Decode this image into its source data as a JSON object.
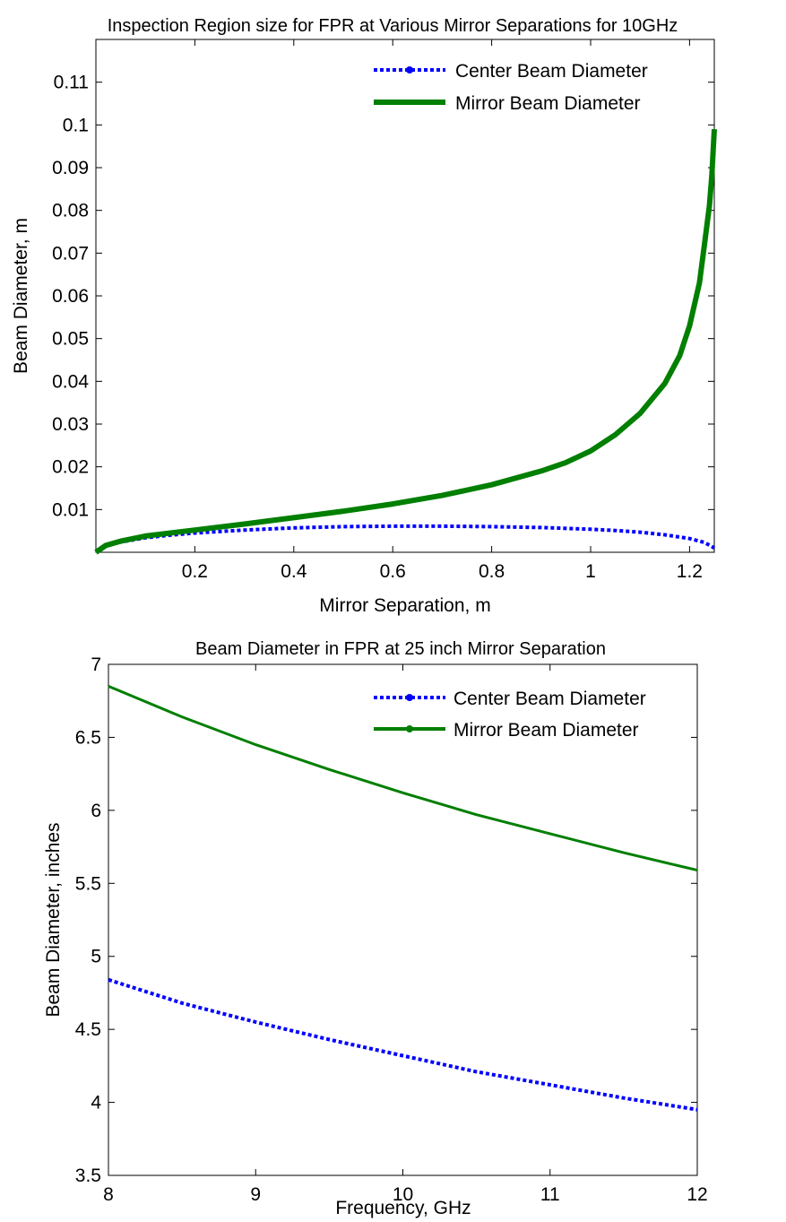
{
  "colors": {
    "center": "#0000ff",
    "mirror": "#007f00",
    "axis": "#000000",
    "background": "#ffffff"
  },
  "chart_data": [
    {
      "type": "line",
      "title": "Inspection Region size for FPR at Various Mirror Separations for 10GHz",
      "xlabel": "Mirror Separation, m",
      "ylabel": "Beam Diameter, m",
      "xlim": [
        0,
        1.25
      ],
      "ylim": [
        0,
        0.12
      ],
      "xticks": [
        {
          "v": 0.2,
          "label": "0.2"
        },
        {
          "v": 0.4,
          "label": "0.4"
        },
        {
          "v": 0.6,
          "label": "0.6"
        },
        {
          "v": 0.8,
          "label": "0.8"
        },
        {
          "v": 1,
          "label": "1"
        },
        {
          "v": 1.2,
          "label": "1.2"
        }
      ],
      "yticks": [
        {
          "v": 0.01,
          "label": "0.01"
        },
        {
          "v": 0.02,
          "label": "0.02"
        },
        {
          "v": 0.03,
          "label": "0.03"
        },
        {
          "v": 0.04,
          "label": "0.04"
        },
        {
          "v": 0.05,
          "label": "0.05"
        },
        {
          "v": 0.06,
          "label": "0.06"
        },
        {
          "v": 0.07,
          "label": "0.07"
        },
        {
          "v": 0.08,
          "label": "0.08"
        },
        {
          "v": 0.09,
          "label": "0.09"
        },
        {
          "v": 0.1,
          "label": "0.1"
        },
        {
          "v": 0.11,
          "label": "0.11"
        }
      ],
      "grid": false,
      "legend_position": "top-right",
      "series": [
        {
          "name": "Center Beam Diameter",
          "style": "dotted",
          "marker": "dot",
          "x": [
            0,
            0.02,
            0.05,
            0.1,
            0.15,
            0.2,
            0.3,
            0.4,
            0.5,
            0.6,
            0.7,
            0.8,
            0.9,
            1.0,
            1.05,
            1.1,
            1.15,
            1.2,
            1.23,
            1.25
          ],
          "y": [
            0,
            0.0016,
            0.0024,
            0.0034,
            0.004,
            0.0045,
            0.0052,
            0.0057,
            0.006,
            0.0061,
            0.0061,
            0.006,
            0.0058,
            0.0054,
            0.0051,
            0.0047,
            0.0041,
            0.0032,
            0.0023,
            0.001
          ]
        },
        {
          "name": "Mirror Beam Diameter",
          "style": "solid",
          "marker": "none",
          "x": [
            0,
            0.02,
            0.05,
            0.1,
            0.2,
            0.3,
            0.4,
            0.5,
            0.6,
            0.7,
            0.8,
            0.9,
            0.95,
            1.0,
            1.05,
            1.1,
            1.15,
            1.18,
            1.2,
            1.22,
            1.23,
            1.24,
            1.245,
            1.25
          ],
          "y": [
            0,
            0.0016,
            0.0026,
            0.0038,
            0.0052,
            0.0066,
            0.0081,
            0.0096,
            0.0113,
            0.0133,
            0.0158,
            0.019,
            0.021,
            0.0237,
            0.0275,
            0.0325,
            0.0395,
            0.046,
            0.053,
            0.063,
            0.072,
            0.081,
            0.088,
            0.099
          ]
        }
      ]
    },
    {
      "type": "line",
      "title": "Beam Diameter in FPR at 25 inch Mirror Separation",
      "xlabel": "Frequency, GHz",
      "ylabel": "Beam Diameter, inches",
      "xlim": [
        8,
        12
      ],
      "ylim": [
        3.5,
        7
      ],
      "xticks": [
        {
          "v": 8,
          "label": "8"
        },
        {
          "v": 9,
          "label": "9"
        },
        {
          "v": 10,
          "label": "10"
        },
        {
          "v": 11,
          "label": "11"
        },
        {
          "v": 12,
          "label": "12"
        }
      ],
      "yticks": [
        {
          "v": 3.5,
          "label": "3.5"
        },
        {
          "v": 4,
          "label": "4"
        },
        {
          "v": 4.5,
          "label": "4.5"
        },
        {
          "v": 5,
          "label": "5"
        },
        {
          "v": 5.5,
          "label": "5.5"
        },
        {
          "v": 6,
          "label": "6"
        },
        {
          "v": 6.5,
          "label": "6.5"
        },
        {
          "v": 7,
          "label": "7"
        }
      ],
      "grid": false,
      "legend_position": "top-right",
      "series": [
        {
          "name": "Center Beam Diameter",
          "style": "dotted",
          "marker": "dot",
          "x": [
            8,
            8.5,
            9,
            9.5,
            10,
            10.5,
            11,
            11.5,
            12
          ],
          "y": [
            4.84,
            4.68,
            4.55,
            4.43,
            4.32,
            4.21,
            4.12,
            4.03,
            3.95
          ]
        },
        {
          "name": "Mirror Beam Diameter",
          "style": "solid",
          "marker": "dot",
          "x": [
            8,
            8.5,
            9,
            9.5,
            10,
            10.5,
            11,
            11.5,
            12
          ],
          "y": [
            6.85,
            6.64,
            6.45,
            6.28,
            6.12,
            5.97,
            5.84,
            5.71,
            5.59
          ]
        }
      ]
    }
  ]
}
